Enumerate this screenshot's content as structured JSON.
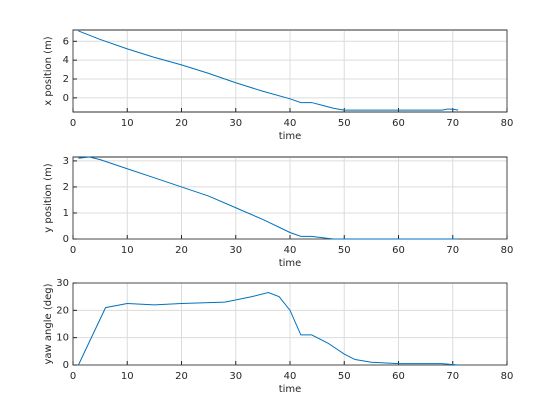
{
  "chart_data": [
    {
      "type": "line",
      "xlabel": "time",
      "ylabel": "x position (m)",
      "color": "#0072bd",
      "grid": true,
      "x": [
        1,
        5,
        10,
        15,
        20,
        25,
        30,
        35,
        40,
        42,
        44,
        46,
        48,
        50,
        55,
        60,
        65,
        68,
        69,
        70,
        71
      ],
      "values": [
        7.1,
        6.2,
        5.2,
        4.3,
        3.5,
        2.6,
        1.6,
        0.7,
        -0.1,
        -0.5,
        -0.5,
        -0.8,
        -1.1,
        -1.3,
        -1.3,
        -1.3,
        -1.3,
        -1.3,
        -1.2,
        -1.2,
        -1.3
      ],
      "xlim": [
        0,
        80
      ],
      "xticks": [
        0,
        10,
        20,
        30,
        40,
        50,
        60,
        70,
        80
      ],
      "ylim": [
        -1.5,
        7.2
      ],
      "yticks": [
        0,
        2,
        4,
        6
      ]
    },
    {
      "type": "line",
      "xlabel": "time",
      "ylabel": "y position (m)",
      "color": "#0072bd",
      "grid": true,
      "x": [
        1,
        3,
        5,
        10,
        15,
        20,
        25,
        30,
        35,
        40,
        42,
        44,
        46,
        48,
        50,
        55,
        60,
        65,
        70,
        71
      ],
      "values": [
        3.1,
        3.15,
        3.05,
        2.7,
        2.35,
        2.0,
        1.65,
        1.2,
        0.75,
        0.25,
        0.1,
        0.1,
        0.05,
        0,
        0,
        0,
        0,
        0,
        0,
        0
      ],
      "xlim": [
        0,
        80
      ],
      "xticks": [
        0,
        10,
        20,
        30,
        40,
        50,
        60,
        70,
        80
      ],
      "ylim": [
        0,
        3.15
      ],
      "yticks": [
        0,
        1,
        2,
        3
      ]
    },
    {
      "type": "line",
      "xlabel": "time",
      "ylabel": "yaw angle (deg)",
      "color": "#0072bd",
      "grid": true,
      "x": [
        1,
        6,
        10,
        15,
        20,
        28,
        33,
        36,
        38,
        40,
        42,
        44,
        47,
        50,
        52,
        55,
        60,
        68,
        71
      ],
      "values": [
        0,
        21,
        22.5,
        22,
        22.5,
        23,
        25,
        26.5,
        25,
        20,
        11,
        11,
        8,
        4,
        2,
        1,
        0.5,
        0.5,
        0
      ],
      "xlim": [
        0,
        80
      ],
      "xticks": [
        0,
        10,
        20,
        30,
        40,
        50,
        60,
        70,
        80
      ],
      "ylim": [
        0,
        30
      ],
      "yticks": [
        0,
        10,
        20,
        30
      ]
    }
  ]
}
